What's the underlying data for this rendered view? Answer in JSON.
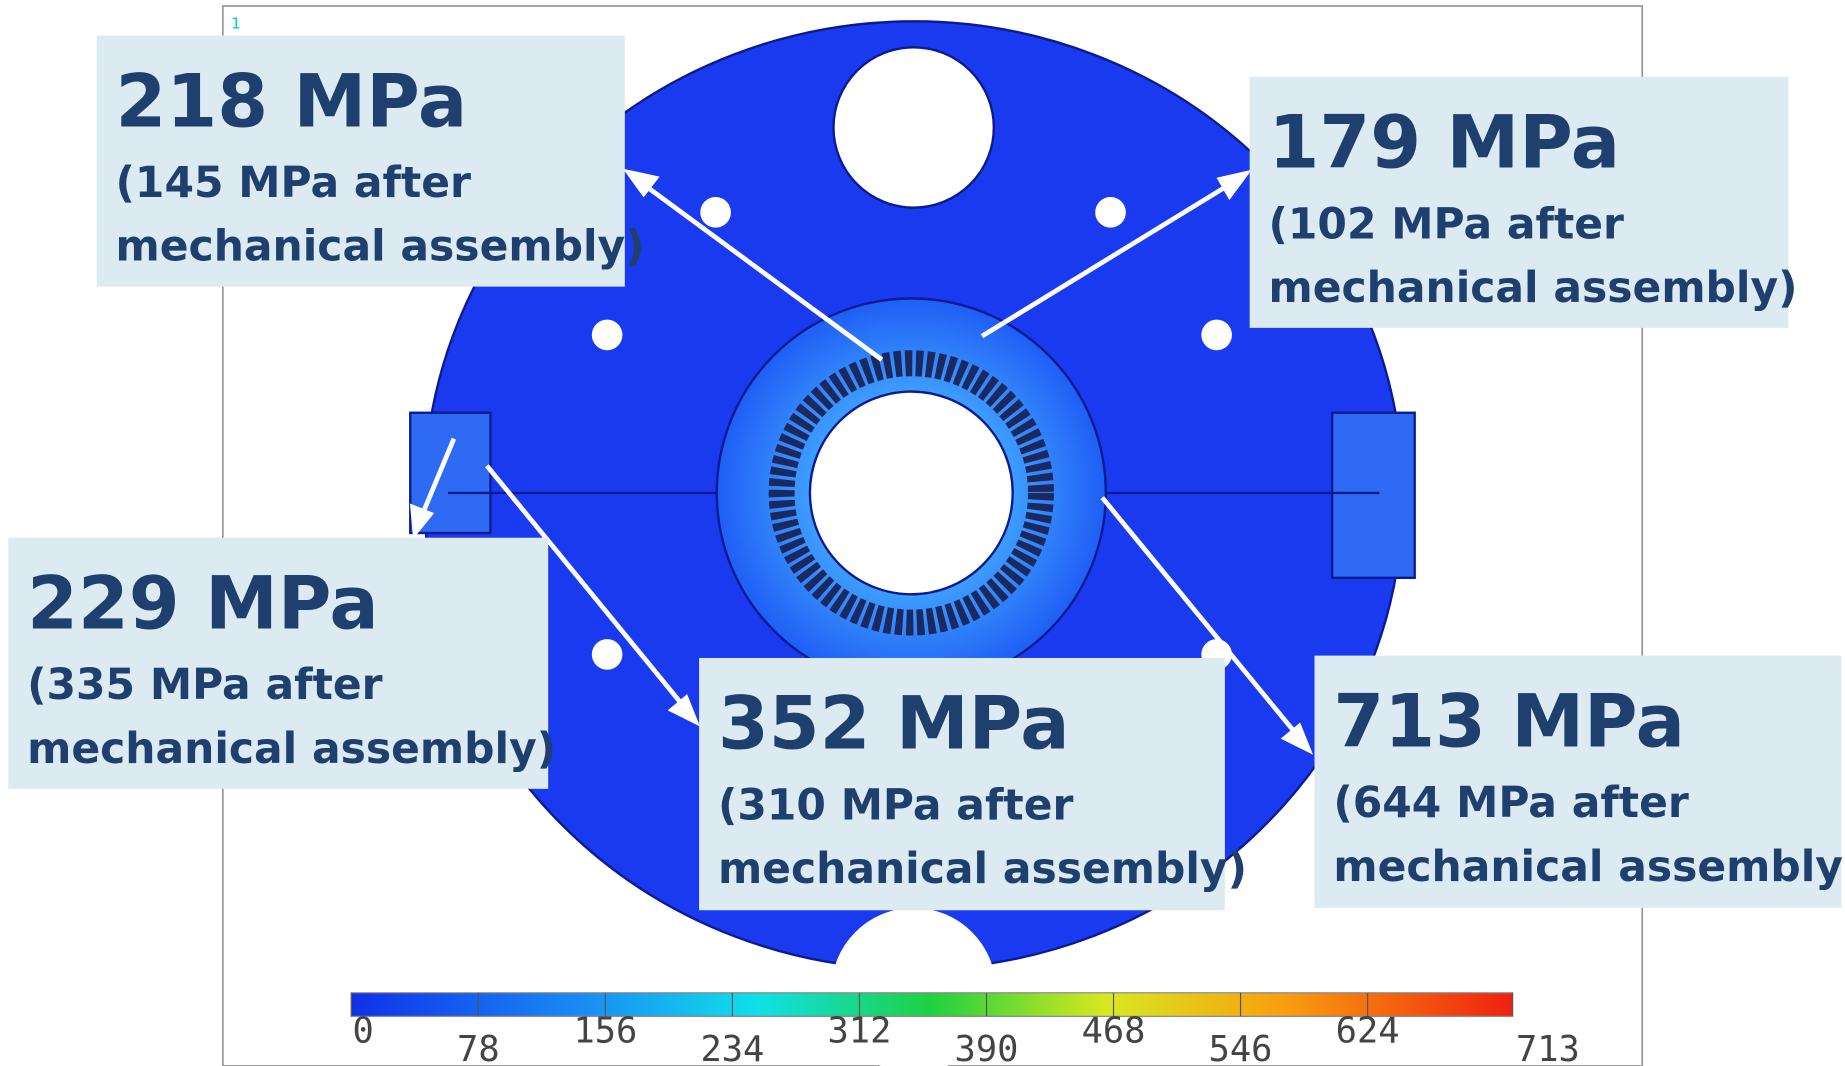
{
  "plot_label": "1",
  "callouts": [
    {
      "value": "218 MPa",
      "note": [
        "(145 MPa after",
        "mechanical assembly)"
      ]
    },
    {
      "value": "179 MPa",
      "note": [
        "(102 MPa after",
        "mechanical assembly)"
      ]
    },
    {
      "value": "229 MPa",
      "note": [
        "(335 MPa after",
        "mechanical assembly)"
      ]
    },
    {
      "value": "352 MPa",
      "note": [
        "(310 MPa after",
        "mechanical assembly)"
      ]
    },
    {
      "value": "713 MPa",
      "note": [
        "(644 MPa after",
        "mechanical assembly)"
      ]
    }
  ],
  "colorbar": {
    "ticks": [
      0,
      78,
      156,
      234,
      312,
      390,
      468,
      546,
      624,
      713
    ]
  }
}
